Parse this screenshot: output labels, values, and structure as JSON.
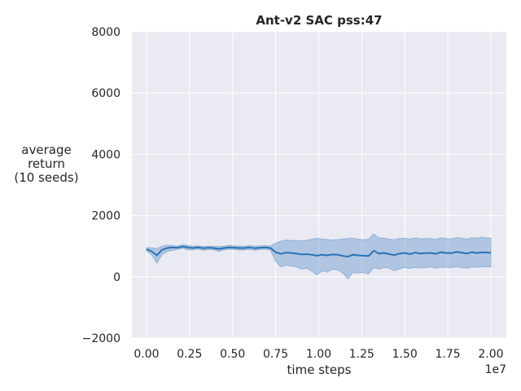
{
  "chart_data": {
    "type": "line",
    "title": "Ant-v2 SAC pss:47",
    "xlabel": "time steps",
    "ylabel_lines": [
      "average",
      "return",
      "(10 seeds)"
    ],
    "x_offset_label": "1e7",
    "x_scale": 10000000,
    "xlim": [
      -850000,
      20900000
    ],
    "ylim": [
      -2000,
      8000
    ],
    "x_ticks": [
      0,
      2500000,
      5000000,
      7500000,
      10000000,
      12500000,
      15000000,
      17500000,
      20000000
    ],
    "x_tick_labels": [
      "0.00",
      "0.25",
      "0.50",
      "0.75",
      "1.00",
      "1.25",
      "1.50",
      "1.75",
      "2.00"
    ],
    "y_ticks": [
      -2000,
      0,
      2000,
      4000,
      6000,
      8000
    ],
    "y_tick_labels": [
      "−2000",
      "0",
      "2000",
      "4000",
      "6000",
      "8000"
    ],
    "grid": true,
    "colors": {
      "background": "#eaeaf2",
      "grid": "#ffffff",
      "line": "#2a72b5",
      "band": "#5a8fc8"
    },
    "series": [
      {
        "x": [
          0,
          300000,
          600000,
          900000,
          1200000,
          1500000,
          1800000,
          2100000,
          2400000,
          2700000,
          3000000,
          3300000,
          3600000,
          3900000,
          4200000,
          4500000,
          4800000,
          5100000,
          5400000,
          5700000,
          6000000,
          6300000,
          6600000,
          6900000,
          7200000,
          7500000,
          7800000,
          8100000,
          8400000,
          8700000,
          9000000,
          9300000,
          9600000,
          9900000,
          10200000,
          10500000,
          10800000,
          11100000,
          11400000,
          11700000,
          12000000,
          12300000,
          12600000,
          12900000,
          13200000,
          13500000,
          13800000,
          14100000,
          14400000,
          14700000,
          15000000,
          15300000,
          15600000,
          15900000,
          16200000,
          16500000,
          16800000,
          17100000,
          17400000,
          17700000,
          18000000,
          18300000,
          18600000,
          18900000,
          19200000,
          19500000,
          19800000,
          20000000
        ],
        "mean": [
          900,
          830,
          700,
          880,
          940,
          960,
          950,
          990,
          960,
          940,
          960,
          930,
          950,
          940,
          910,
          940,
          960,
          950,
          940,
          940,
          960,
          930,
          950,
          960,
          940,
          800,
          750,
          790,
          780,
          760,
          730,
          740,
          720,
          690,
          720,
          700,
          730,
          720,
          680,
          660,
          720,
          700,
          690,
          680,
          850,
          760,
          780,
          740,
          710,
          760,
          780,
          740,
          790,
          760,
          770,
          780,
          750,
          800,
          780,
          770,
          810,
          790,
          760,
          800,
          780,
          800,
          790,
          790
        ],
        "lower": [
          850,
          720,
          450,
          720,
          830,
          860,
          900,
          930,
          880,
          880,
          910,
          860,
          900,
          880,
          830,
          880,
          900,
          890,
          870,
          880,
          900,
          860,
          890,
          900,
          870,
          500,
          320,
          380,
          350,
          330,
          250,
          280,
          180,
          70,
          200,
          150,
          250,
          230,
          120,
          -60,
          150,
          120,
          140,
          90,
          300,
          250,
          300,
          280,
          200,
          260,
          300,
          270,
          310,
          290,
          300,
          320,
          280,
          310,
          310,
          300,
          330,
          300,
          280,
          320,
          310,
          330,
          320,
          320
        ],
        "upper": [
          950,
          950,
          920,
          1000,
          1040,
          1020,
          1000,
          1050,
          1020,
          1000,
          1010,
          990,
          1000,
          1000,
          990,
          1000,
          1020,
          1010,
          1000,
          1000,
          1020,
          1000,
          1010,
          1020,
          1000,
          1100,
          1160,
          1200,
          1190,
          1180,
          1170,
          1200,
          1230,
          1260,
          1230,
          1220,
          1200,
          1210,
          1240,
          1250,
          1260,
          1230,
          1210,
          1230,
          1400,
          1270,
          1260,
          1230,
          1210,
          1250,
          1260,
          1230,
          1270,
          1240,
          1250,
          1250,
          1220,
          1270,
          1250,
          1240,
          1280,
          1260,
          1230,
          1280,
          1260,
          1290,
          1270,
          1260
        ]
      }
    ]
  }
}
